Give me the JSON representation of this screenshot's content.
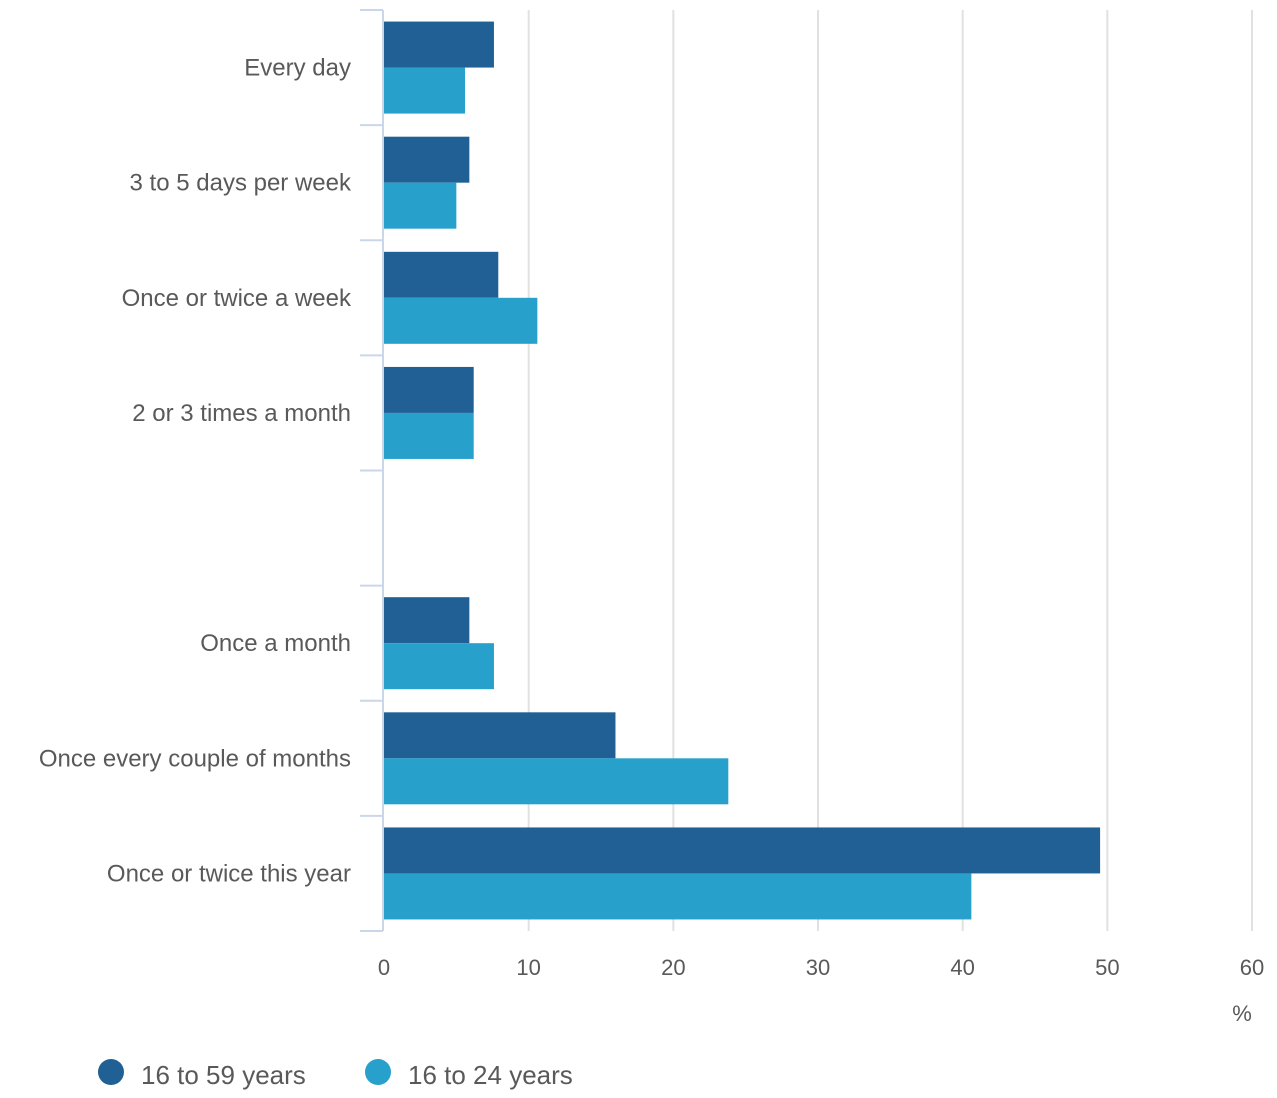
{
  "chart_data": {
    "type": "bar",
    "orientation": "horizontal",
    "categories": [
      "Every day",
      "3 to 5 days per week",
      "Once or twice a week",
      "2 or 3 times a month",
      "",
      "Once a month",
      "Once every couple of months",
      "Once or twice this year"
    ],
    "series": [
      {
        "name": "16 to 59 years",
        "color": "#206095",
        "values": [
          7.6,
          5.9,
          7.9,
          6.2,
          null,
          5.9,
          16.0,
          49.5
        ]
      },
      {
        "name": "16 to 24 years",
        "color": "#27a0cc",
        "values": [
          5.6,
          5.0,
          10.6,
          6.2,
          null,
          7.6,
          23.8,
          40.6
        ]
      }
    ],
    "xlim": [
      0,
      60
    ],
    "xticks": [
      0,
      10,
      20,
      30,
      40,
      50,
      60
    ],
    "xunit": "%",
    "grid": true,
    "legend_position": "bottom-left"
  }
}
